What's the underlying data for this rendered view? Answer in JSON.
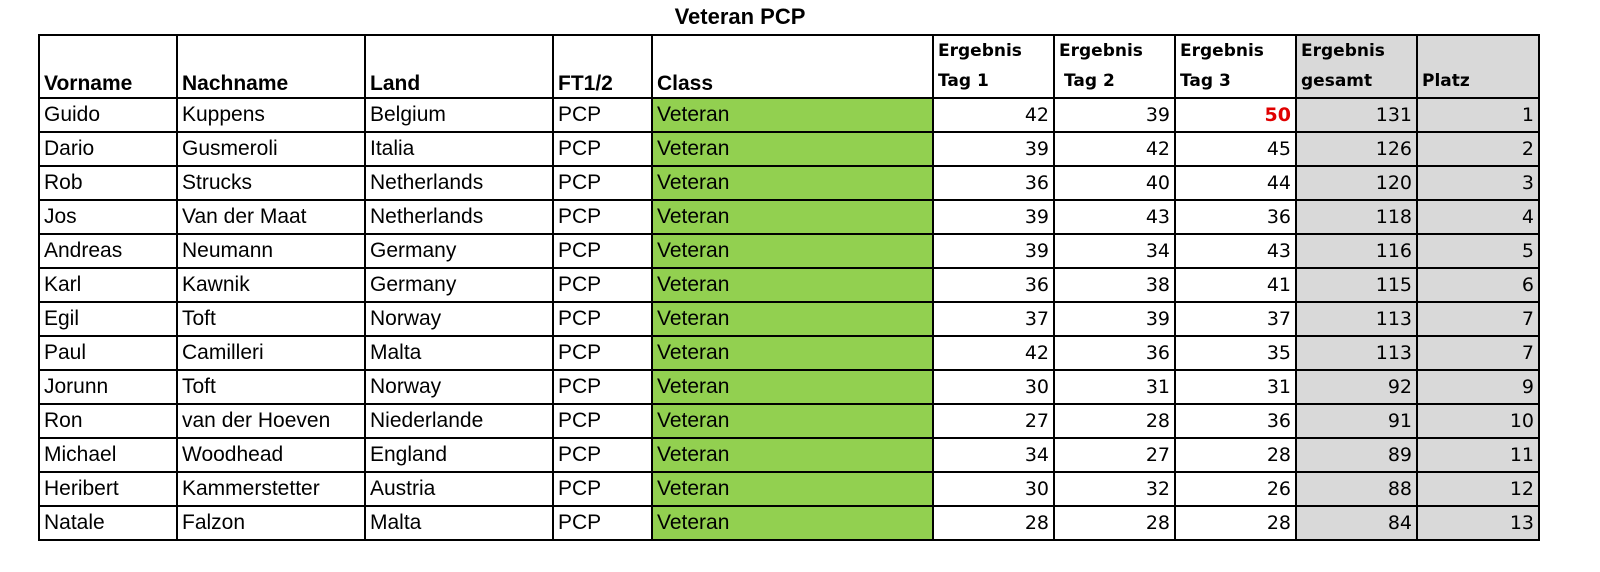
{
  "title": "Veteran PCP",
  "headers": {
    "vorname": "Vorname",
    "nachname": "Nachname",
    "land": "Land",
    "ft": "FT1/2",
    "class": "Class",
    "tag1": [
      "Ergebnis",
      "Tag 1"
    ],
    "tag2": [
      "Ergebnis",
      "Tag 2"
    ],
    "tag3": [
      "Ergebnis",
      "Tag 3"
    ],
    "gesamt": [
      "Ergebnis",
      "gesamt"
    ],
    "platz": "Platz"
  },
  "colors": {
    "class_fill": "#92d050",
    "total_fill": "#d9d9d9",
    "highlight": "#e00000"
  },
  "rows": [
    {
      "vorname": "Guido",
      "nachname": "Kuppens",
      "land": "Belgium",
      "ft": "PCP",
      "class": "Veteran",
      "tag1": "42",
      "tag2": "39",
      "tag3": "50",
      "gesamt": "131",
      "platz": "1"
    },
    {
      "vorname": "Dario",
      "nachname": "Gusmeroli",
      "land": "Italia",
      "ft": "PCP",
      "class": "Veteran",
      "tag1": "39",
      "tag2": "42",
      "tag3": "45",
      "gesamt": "126",
      "platz": "2"
    },
    {
      "vorname": "Rob",
      "nachname": "Strucks",
      "land": "Netherlands",
      "ft": "PCP",
      "class": "Veteran",
      "tag1": "36",
      "tag2": "40",
      "tag3": "44",
      "gesamt": "120",
      "platz": "3"
    },
    {
      "vorname": "Jos",
      "nachname": "Van der Maat",
      "land": "Netherlands",
      "ft": "PCP",
      "class": "Veteran",
      "tag1": "39",
      "tag2": "43",
      "tag3": "36",
      "gesamt": "118",
      "platz": "4"
    },
    {
      "vorname": "Andreas",
      "nachname": "Neumann",
      "land": "Germany",
      "ft": "PCP",
      "class": "Veteran",
      "tag1": "39",
      "tag2": "34",
      "tag3": "43",
      "gesamt": "116",
      "platz": "5"
    },
    {
      "vorname": "Karl",
      "nachname": "Kawnik",
      "land": "Germany",
      "ft": "PCP",
      "class": "Veteran",
      "tag1": "36",
      "tag2": "38",
      "tag3": "41",
      "gesamt": "115",
      "platz": "6"
    },
    {
      "vorname": "Egil",
      "nachname": "Toft",
      "land": "Norway",
      "ft": "PCP",
      "class": "Veteran",
      "tag1": "37",
      "tag2": "39",
      "tag3": "37",
      "gesamt": "113",
      "platz": "7"
    },
    {
      "vorname": "Paul",
      "nachname": "Camilleri",
      "land": "Malta",
      "ft": "PCP",
      "class": "Veteran",
      "tag1": "42",
      "tag2": "36",
      "tag3": "35",
      "gesamt": "113",
      "platz": "7"
    },
    {
      "vorname": "Jorunn",
      "nachname": "Toft",
      "land": "Norway",
      "ft": "PCP",
      "class": "Veteran",
      "tag1": "30",
      "tag2": "31",
      "tag3": "31",
      "gesamt": "92",
      "platz": "9"
    },
    {
      "vorname": "Ron",
      "nachname": "van der Hoeven",
      "land": "Niederlande",
      "ft": "PCP",
      "class": "Veteran",
      "tag1": "27",
      "tag2": "28",
      "tag3": "36",
      "gesamt": "91",
      "platz": "10"
    },
    {
      "vorname": "Michael",
      "nachname": "Woodhead",
      "land": "England",
      "ft": "PCP",
      "class": "Veteran",
      "tag1": "34",
      "tag2": "27",
      "tag3": "28",
      "gesamt": "89",
      "platz": "11"
    },
    {
      "vorname": "Heribert",
      "nachname": "Kammerstetter",
      "land": "Austria",
      "ft": "PCP",
      "class": "Veteran",
      "tag1": "30",
      "tag2": "32",
      "tag3": "26",
      "gesamt": "88",
      "platz": "12"
    },
    {
      "vorname": "Natale",
      "nachname": "Falzon",
      "land": "Malta",
      "ft": "PCP",
      "class": "Veteran",
      "tag1": "28",
      "tag2": "28",
      "tag3": "28",
      "gesamt": "84",
      "platz": "13"
    }
  ]
}
